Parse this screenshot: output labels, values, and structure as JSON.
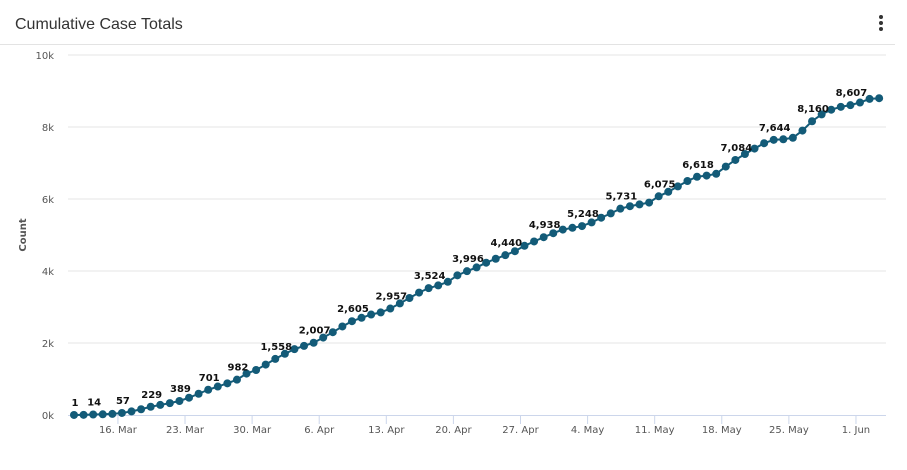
{
  "header": {
    "title": "Cumulative Case Totals",
    "menu_icon": "kebab-menu-icon"
  },
  "chart_data": {
    "type": "line",
    "title": "Cumulative Case Totals",
    "xlabel": "",
    "ylabel": "Count",
    "x_start": "2020-03-11",
    "x_end": "2020-06-03",
    "x_tick_labels": [
      "16. Mar",
      "23. Mar",
      "30. Mar",
      "6. Apr",
      "13. Apr",
      "20. Apr",
      "27. Apr",
      "4. May",
      "11. May",
      "18. May",
      "25. May",
      "1. Jun"
    ],
    "x_tick_day_offsets": [
      5,
      12,
      19,
      26,
      33,
      40,
      47,
      54,
      61,
      68,
      75,
      82
    ],
    "y_tick_labels": [
      "0k",
      "2k",
      "4k",
      "6k",
      "8k",
      "10k"
    ],
    "y_ticks": [
      0,
      2000,
      4000,
      6000,
      8000,
      10000
    ],
    "ylim": [
      0,
      10000
    ],
    "grid": true,
    "legend": "none",
    "series": [
      {
        "name": "Count",
        "color": "#135b78",
        "values": [
          1,
          5,
          14,
          20,
          30,
          57,
          100,
          160,
          229,
          280,
          330,
          389,
          480,
          590,
          701,
          790,
          880,
          982,
          1150,
          1250,
          1400,
          1558,
          1700,
          1830,
          1920,
          2007,
          2150,
          2300,
          2460,
          2605,
          2700,
          2790,
          2850,
          2957,
          3100,
          3250,
          3400,
          3524,
          3600,
          3700,
          3880,
          3996,
          4100,
          4230,
          4340,
          4440,
          4550,
          4700,
          4820,
          4938,
          5050,
          5150,
          5200,
          5248,
          5350,
          5480,
          5600,
          5731,
          5800,
          5850,
          5900,
          6075,
          6200,
          6350,
          6500,
          6618,
          6650,
          6700,
          6900,
          7084,
          7250,
          7400,
          7550,
          7644,
          7660,
          7700,
          7900,
          8160,
          8350,
          8480,
          8560,
          8607,
          8680,
          8780,
          8800
        ]
      }
    ],
    "data_labels": [
      {
        "index": 0,
        "text": "1"
      },
      {
        "index": 2,
        "text": "14"
      },
      {
        "index": 5,
        "text": "57"
      },
      {
        "index": 8,
        "text": "229"
      },
      {
        "index": 11,
        "text": "389"
      },
      {
        "index": 14,
        "text": "701"
      },
      {
        "index": 17,
        "text": "982"
      },
      {
        "index": 21,
        "text": "1,558"
      },
      {
        "index": 25,
        "text": "2,007"
      },
      {
        "index": 29,
        "text": "2,605"
      },
      {
        "index": 33,
        "text": "2,957"
      },
      {
        "index": 37,
        "text": "3,524"
      },
      {
        "index": 41,
        "text": "3,996"
      },
      {
        "index": 45,
        "text": "4,440"
      },
      {
        "index": 49,
        "text": "4,938"
      },
      {
        "index": 53,
        "text": "5,248"
      },
      {
        "index": 57,
        "text": "5,731"
      },
      {
        "index": 61,
        "text": "6,075"
      },
      {
        "index": 65,
        "text": "6,618"
      },
      {
        "index": 69,
        "text": "7,084"
      },
      {
        "index": 73,
        "text": "7,644"
      },
      {
        "index": 77,
        "text": "8,160"
      },
      {
        "index": 81,
        "text": "8,607"
      }
    ]
  }
}
